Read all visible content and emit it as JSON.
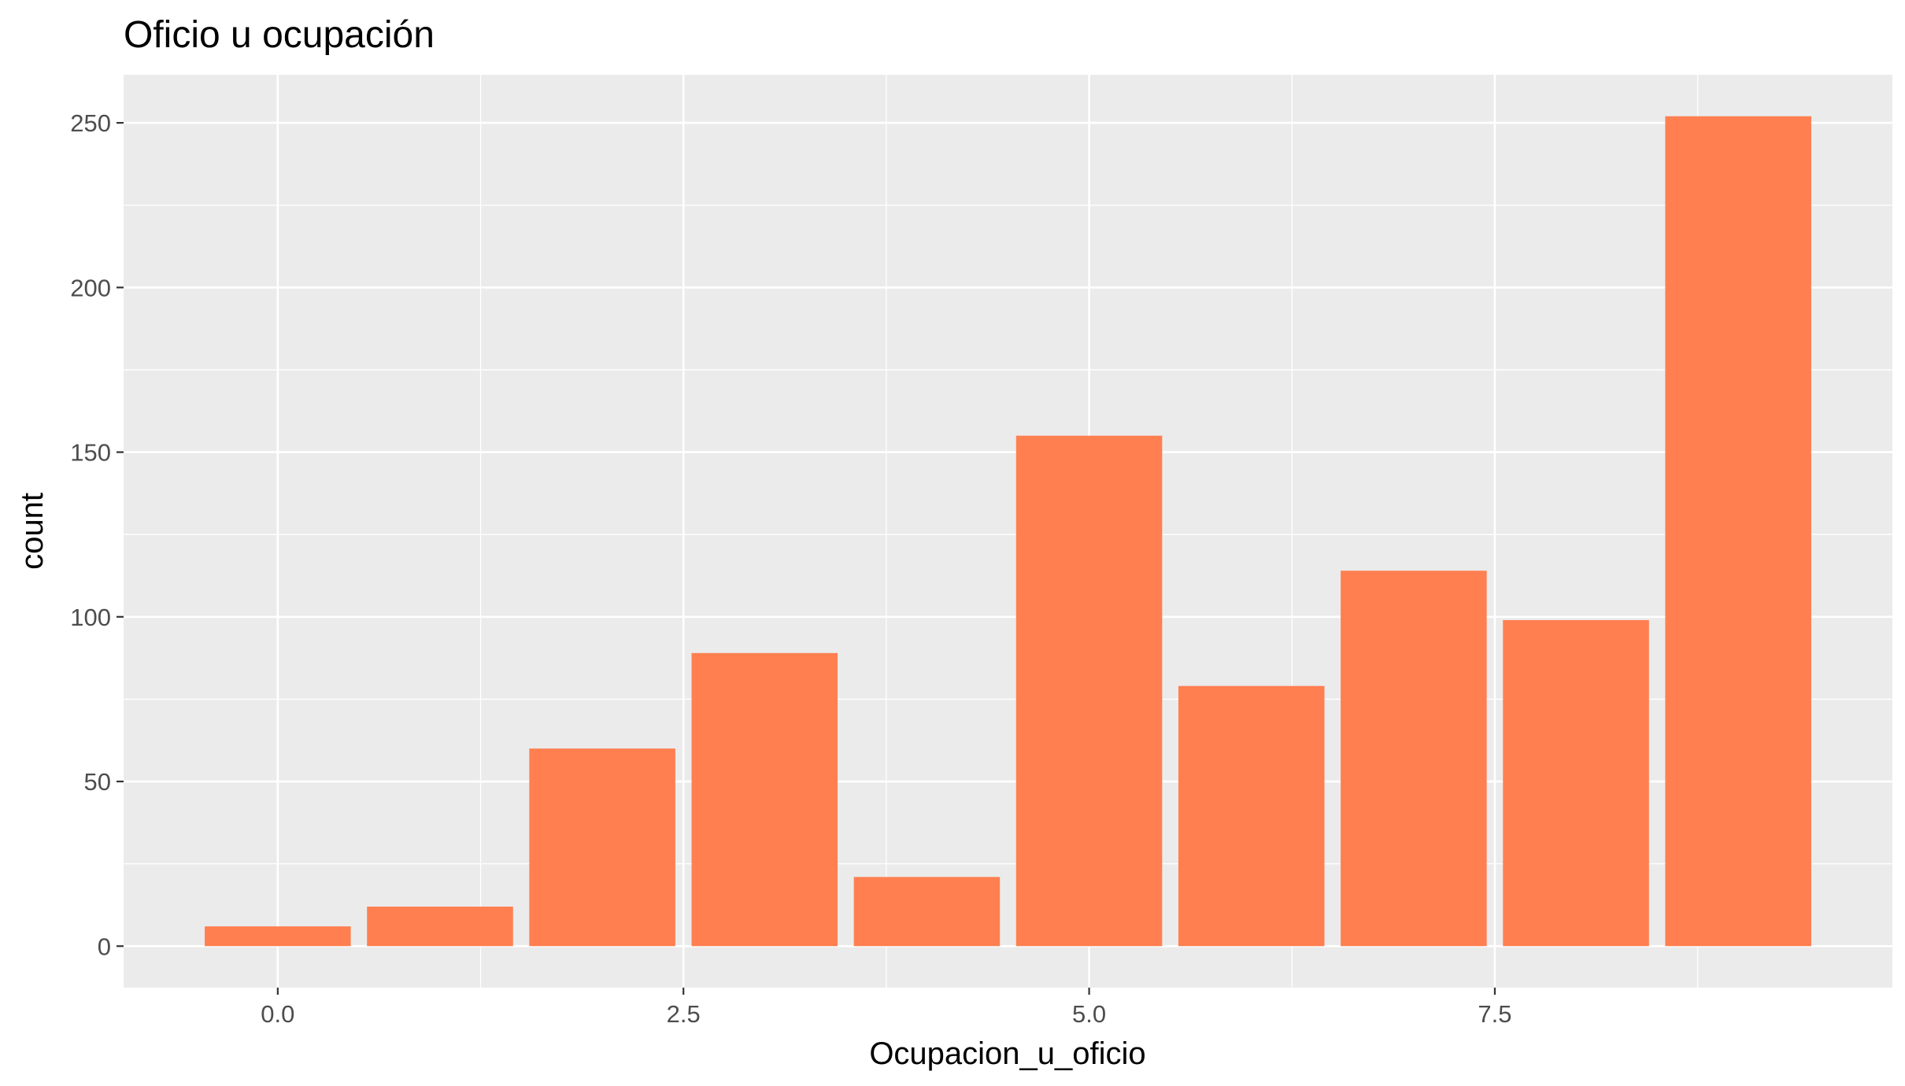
{
  "chart_data": {
    "type": "bar",
    "title": "Oficio u ocupación",
    "xlabel": "Ocupacion_u_oficio",
    "ylabel": "count",
    "x": [
      0,
      1,
      2,
      3,
      4,
      5,
      6,
      7,
      8,
      9
    ],
    "values": [
      6,
      12,
      60,
      89,
      21,
      155,
      79,
      114,
      99,
      252
    ],
    "bar_width": 0.9,
    "xlim": [
      -0.95,
      9.95
    ],
    "ylim": [
      -12.6,
      264.6
    ],
    "x_ticks": [
      0,
      2.5,
      5,
      7.5
    ],
    "x_tick_labels": [
      "0.0",
      "2.5",
      "5.0",
      "7.5"
    ],
    "x_minor_ticks": [
      1.25,
      3.75,
      6.25,
      8.75
    ],
    "y_ticks": [
      0,
      50,
      100,
      150,
      200,
      250
    ],
    "y_tick_labels": [
      "0",
      "50",
      "100",
      "150",
      "200",
      "250"
    ],
    "y_minor_ticks": [
      25,
      75,
      125,
      175,
      225
    ],
    "grid": true,
    "legend": "none",
    "colors": {
      "bar_fill": "#ff7f50",
      "panel_background": "#ebebeb",
      "grid_line": "#ffffff",
      "tick_text": "#4d4d4d",
      "tick_mark": "#333333"
    }
  }
}
